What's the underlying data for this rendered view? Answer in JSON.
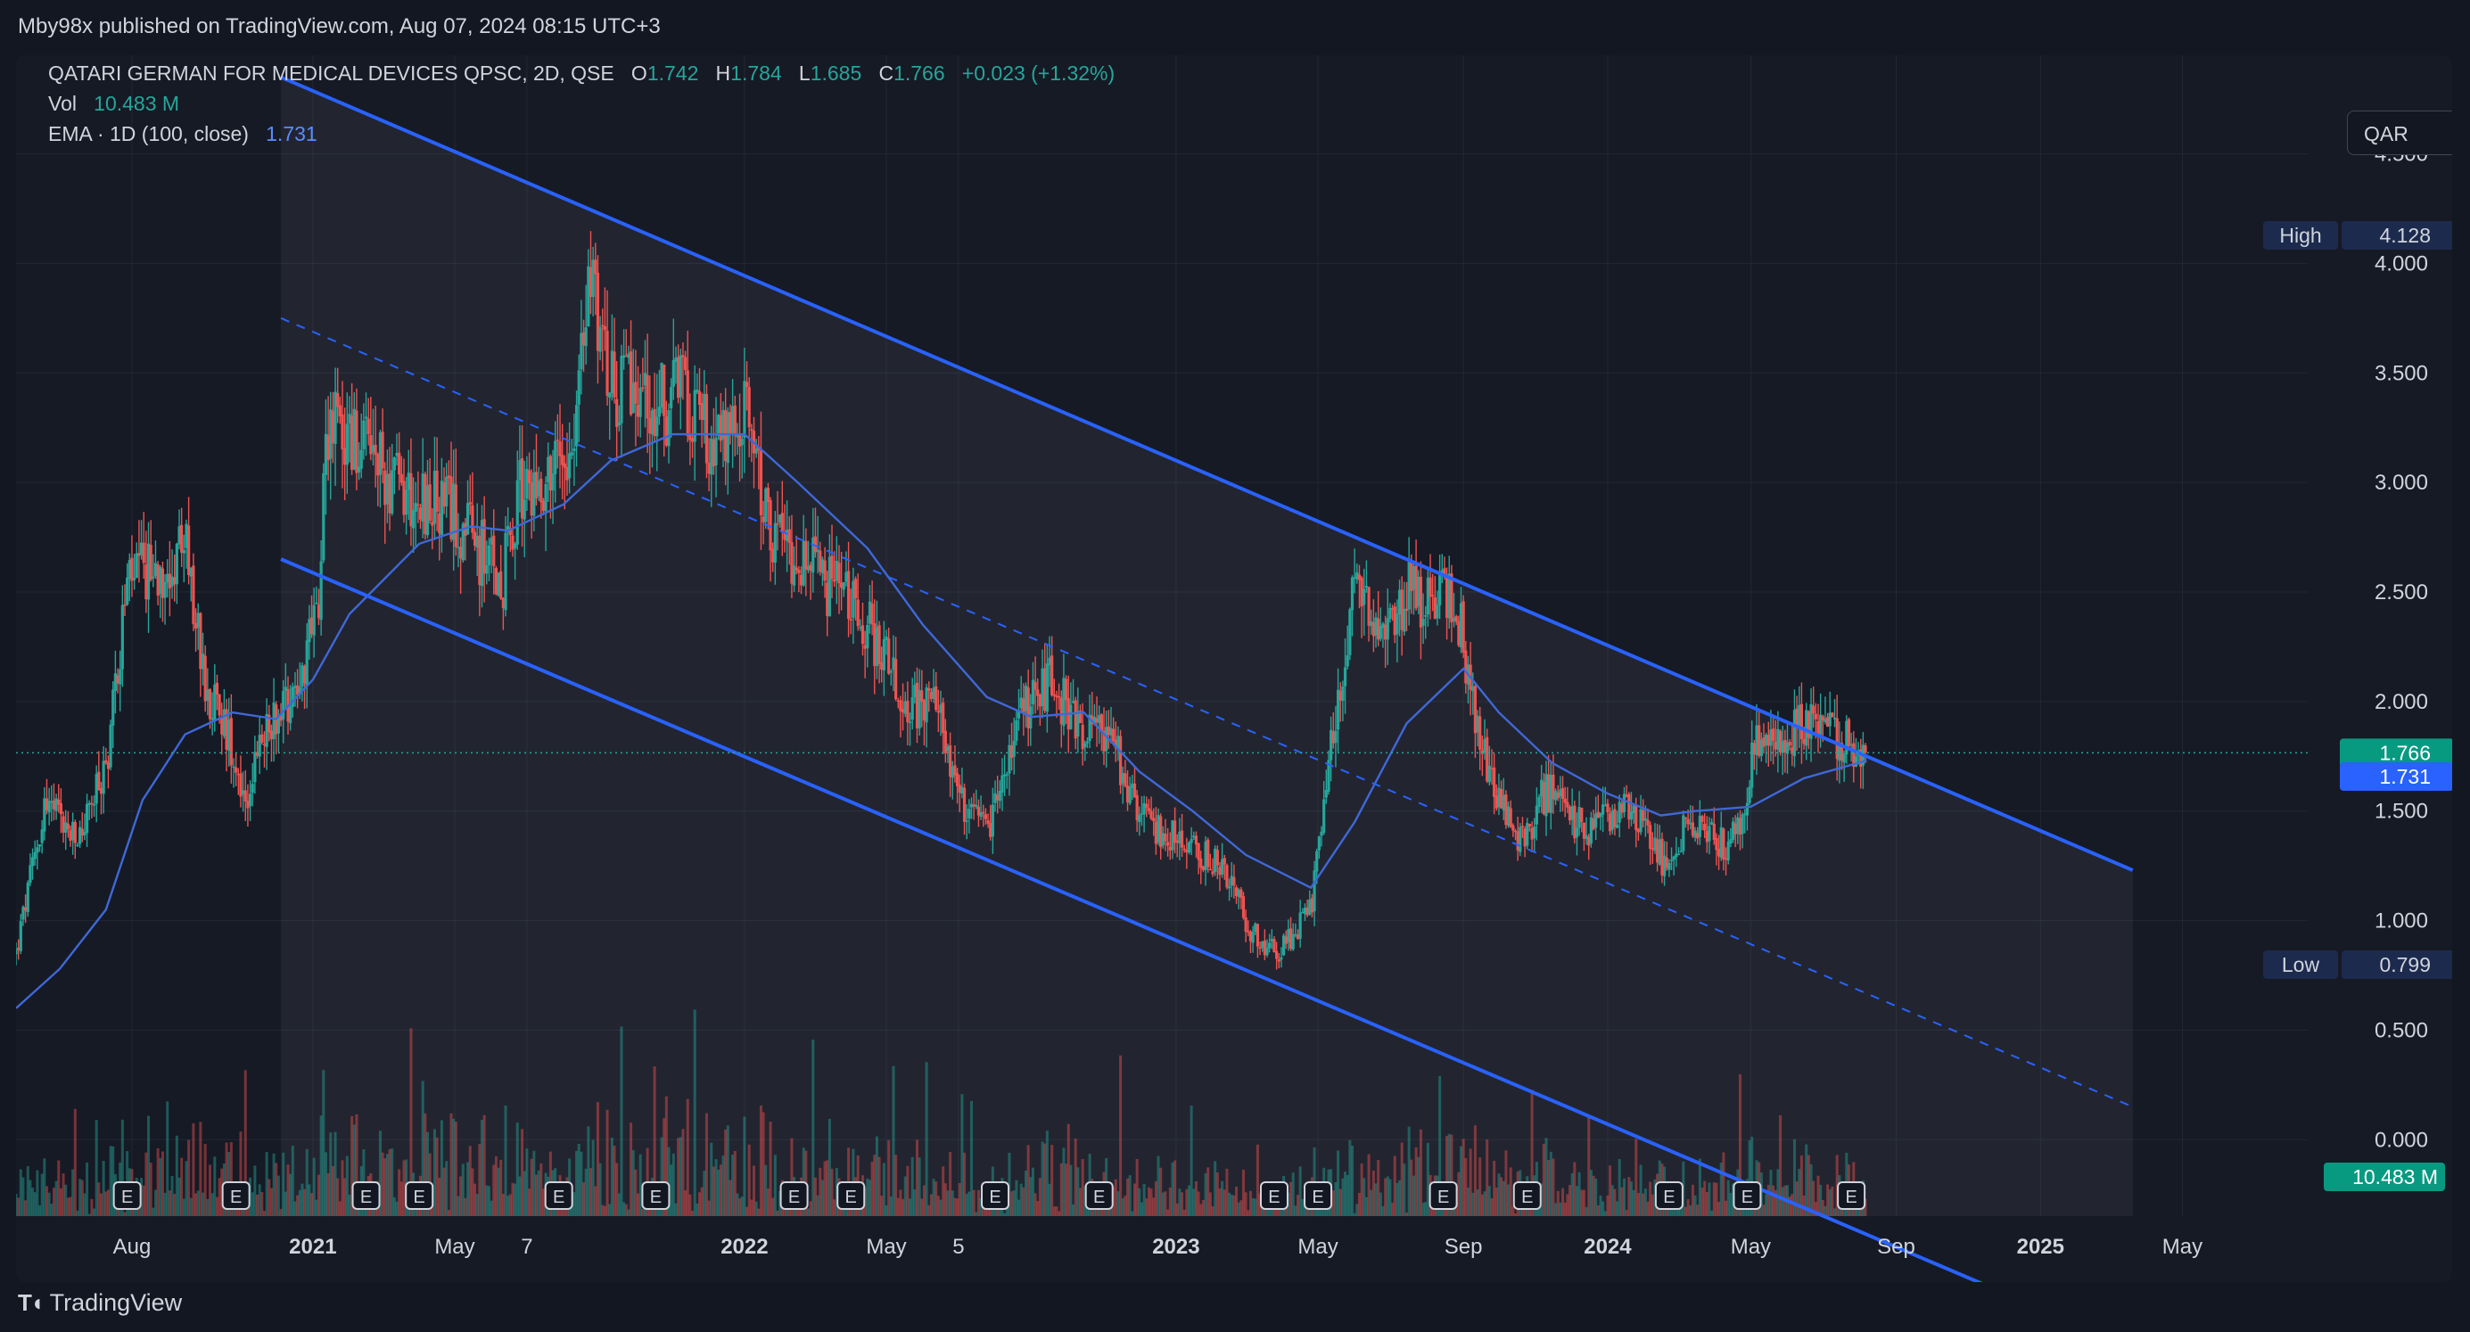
{
  "publish_line": "Mby98x published on TradingView.com, Aug 07, 2024 08:15 UTC+3",
  "currency": "QAR",
  "brand": "TradingView",
  "legend": {
    "title": "QATARI GERMAN FOR MEDICAL DEVICES QPSC, 2D, QSE",
    "o_label": "O",
    "o_value": "1.742",
    "h_label": "H",
    "h_value": "1.784",
    "l_label": "L",
    "l_value": "1.685",
    "c_label": "C",
    "c_value": "1.766",
    "change": "+0.023 (+1.32%)",
    "vol_label": "Vol",
    "vol_value": "10.483 M",
    "ema_label": "EMA · 1D (100, close)",
    "ema_value": "1.731"
  },
  "colors": {
    "up": "#26a69a",
    "down": "#ef5350",
    "channel": "#2962ff",
    "ema": "#3f68d8",
    "price_tag": "#089981",
    "ema_tag": "#2962ff",
    "grid": "#232734",
    "axis_text": "#d1d4dc"
  },
  "chart_data": {
    "type": "candlestick",
    "y_axis": {
      "ticks": [
        4.5,
        4.0,
        3.5,
        3.0,
        2.5,
        2.0,
        1.5,
        1.0,
        0.5,
        0.0
      ],
      "tick_labels": [
        "4.500",
        "4.000",
        "3.500",
        "3.000",
        "2.500",
        "2.000",
        "1.500",
        "1.000",
        "0.500",
        "0.000"
      ],
      "range": [
        -0.65,
        4.95
      ]
    },
    "x_axis": {
      "range": [
        "2020-04-25",
        "2025-08-15"
      ],
      "tick_dates": [
        "2020-08-01",
        "2021-01-01",
        "2021-05-01",
        "2021-07-01",
        "2022-01-01",
        "2022-05-01",
        "2022-07-01",
        "2023-01-01",
        "2023-05-01",
        "2023-09-01",
        "2024-01-01",
        "2024-05-01",
        "2024-09-01",
        "2025-01-01",
        "2025-05-01"
      ],
      "tick_labels": [
        "Aug",
        "2021",
        "May",
        "7",
        "2022",
        "May",
        "5",
        "2023",
        "May",
        "Sep",
        "2024",
        "May",
        "Sep",
        "2025",
        "May"
      ]
    },
    "price_path": [
      [
        "2020-04-25",
        0.85
      ],
      [
        "2020-05-20",
        1.55
      ],
      [
        "2020-06-15",
        1.35
      ],
      [
        "2020-07-10",
        1.7
      ],
      [
        "2020-07-28",
        2.55
      ],
      [
        "2020-08-20",
        2.6
      ],
      [
        "2020-09-15",
        2.7
      ],
      [
        "2020-10-01",
        2.1
      ],
      [
        "2020-10-25",
        1.8
      ],
      [
        "2020-11-05",
        1.55
      ],
      [
        "2020-11-25",
        1.9
      ],
      [
        "2020-12-20",
        2.1
      ],
      [
        "2021-01-05",
        2.4
      ],
      [
        "2021-01-12",
        3.3
      ],
      [
        "2021-02-10",
        3.15
      ],
      [
        "2021-03-20",
        2.95
      ],
      [
        "2021-05-01",
        2.85
      ],
      [
        "2021-06-10",
        2.55
      ],
      [
        "2021-06-25",
        2.95
      ],
      [
        "2021-07-20",
        3.05
      ],
      [
        "2021-08-10",
        3.25
      ],
      [
        "2021-08-25",
        4.0
      ],
      [
        "2021-09-10",
        3.45
      ],
      [
        "2021-10-15",
        3.35
      ],
      [
        "2021-11-15",
        3.4
      ],
      [
        "2021-12-10",
        3.15
      ],
      [
        "2022-01-05",
        3.3
      ],
      [
        "2022-01-20",
        2.8
      ],
      [
        "2022-03-01",
        2.6
      ],
      [
        "2022-04-15",
        2.35
      ],
      [
        "2022-05-20",
        2.0
      ],
      [
        "2022-06-15",
        1.95
      ],
      [
        "2022-07-05",
        1.5
      ],
      [
        "2022-07-25",
        1.4
      ],
      [
        "2022-08-25",
        1.95
      ],
      [
        "2022-09-15",
        2.1
      ],
      [
        "2022-10-10",
        1.9
      ],
      [
        "2022-11-05",
        1.85
      ],
      [
        "2022-12-05",
        1.45
      ],
      [
        "2023-01-10",
        1.35
      ],
      [
        "2023-02-10",
        1.25
      ],
      [
        "2023-03-05",
        0.95
      ],
      [
        "2023-03-28",
        0.85
      ],
      [
        "2023-04-25",
        1.05
      ],
      [
        "2023-05-15",
        1.9
      ],
      [
        "2023-06-01",
        2.55
      ],
      [
        "2023-06-20",
        2.25
      ],
      [
        "2023-07-15",
        2.5
      ],
      [
        "2023-08-05",
        2.45
      ],
      [
        "2023-08-25",
        2.5
      ],
      [
        "2023-09-10",
        1.95
      ],
      [
        "2023-10-01",
        1.55
      ],
      [
        "2023-10-20",
        1.35
      ],
      [
        "2023-11-10",
        1.6
      ],
      [
        "2023-12-15",
        1.4
      ],
      [
        "2024-01-15",
        1.55
      ],
      [
        "2024-02-20",
        1.25
      ],
      [
        "2024-03-10",
        1.45
      ],
      [
        "2024-04-10",
        1.35
      ],
      [
        "2024-04-25",
        1.45
      ],
      [
        "2024-05-05",
        1.85
      ],
      [
        "2024-05-25",
        1.8
      ],
      [
        "2024-06-15",
        1.9
      ],
      [
        "2024-07-10",
        1.85
      ],
      [
        "2024-08-07",
        1.766
      ]
    ],
    "ema": [
      [
        "2020-04-25",
        0.6
      ],
      [
        "2020-06-01",
        0.78
      ],
      [
        "2020-07-10",
        1.05
      ],
      [
        "2020-08-10",
        1.55
      ],
      [
        "2020-09-15",
        1.85
      ],
      [
        "2020-10-25",
        1.95
      ],
      [
        "2020-12-01",
        1.92
      ],
      [
        "2021-01-01",
        2.1
      ],
      [
        "2021-02-01",
        2.4
      ],
      [
        "2021-04-01",
        2.72
      ],
      [
        "2021-05-15",
        2.8
      ],
      [
        "2021-06-15",
        2.78
      ],
      [
        "2021-08-01",
        2.9
      ],
      [
        "2021-09-10",
        3.1
      ],
      [
        "2021-11-01",
        3.22
      ],
      [
        "2022-01-01",
        3.22
      ],
      [
        "2022-02-15",
        3.0
      ],
      [
        "2022-04-15",
        2.7
      ],
      [
        "2022-06-01",
        2.35
      ],
      [
        "2022-07-25",
        2.02
      ],
      [
        "2022-09-01",
        1.93
      ],
      [
        "2022-10-15",
        1.95
      ],
      [
        "2022-12-01",
        1.68
      ],
      [
        "2023-01-15",
        1.5
      ],
      [
        "2023-03-01",
        1.3
      ],
      [
        "2023-04-25",
        1.15
      ],
      [
        "2023-06-01",
        1.45
      ],
      [
        "2023-07-15",
        1.9
      ],
      [
        "2023-09-01",
        2.15
      ],
      [
        "2023-10-01",
        1.95
      ],
      [
        "2023-11-15",
        1.72
      ],
      [
        "2024-01-01",
        1.58
      ],
      [
        "2024-02-15",
        1.48
      ],
      [
        "2024-03-15",
        1.5
      ],
      [
        "2024-05-01",
        1.52
      ],
      [
        "2024-06-15",
        1.65
      ],
      [
        "2024-08-07",
        1.731
      ]
    ],
    "volume_max": 26,
    "channel": {
      "upper": [
        [
          "2020-12-05",
          4.85
        ],
        [
          "2025-03-20",
          1.23
        ]
      ],
      "middle": [
        [
          "2020-12-05",
          3.75
        ],
        [
          "2025-03-20",
          0.15
        ]
      ],
      "lower": [
        [
          "2020-12-05",
          2.65
        ],
        [
          "2025-03-20",
          -0.95
        ]
      ]
    },
    "earnings_dates": [
      "2020-07-28",
      "2020-10-28",
      "2021-02-15",
      "2021-04-01",
      "2021-07-28",
      "2021-10-18",
      "2022-02-12",
      "2022-04-01",
      "2022-08-01",
      "2022-10-28",
      "2023-03-25",
      "2023-05-01",
      "2023-08-15",
      "2023-10-25",
      "2024-02-22",
      "2024-04-28",
      "2024-07-25"
    ],
    "earnings_marker": "E",
    "high": {
      "label": "High",
      "value": "4.128"
    },
    "low": {
      "label": "Low",
      "value": "0.799"
    },
    "last_price": "1.766",
    "ema_last": "1.731",
    "volume_last": "10.483 M"
  }
}
